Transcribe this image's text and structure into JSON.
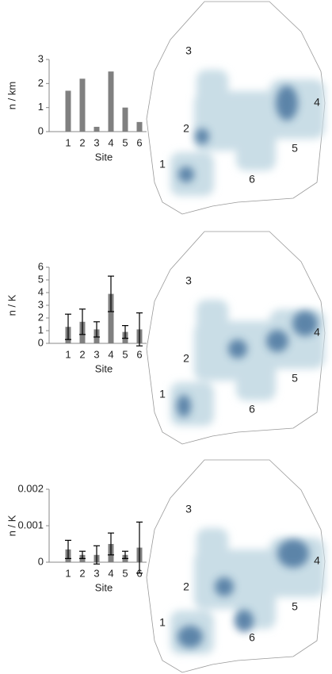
{
  "chart_data": [
    {
      "type": "bar",
      "xlabel": "Site",
      "ylabel": "n / km",
      "categories": [
        "1",
        "2",
        "3",
        "4",
        "5",
        "6"
      ],
      "values": [
        1.7,
        2.2,
        0.2,
        2.5,
        1.0,
        0.4
      ],
      "color": "#808080",
      "ylim": [
        0,
        3
      ],
      "yticks": [
        0,
        1,
        2,
        3
      ]
    },
    {
      "type": "bar",
      "xlabel": "Site",
      "ylabel": "n / K",
      "categories": [
        "1",
        "2",
        "3",
        "4",
        "5",
        "6"
      ],
      "values": [
        1.3,
        1.7,
        1.1,
        3.9,
        0.9,
        1.1
      ],
      "errors": [
        1.0,
        1.0,
        0.6,
        1.4,
        0.5,
        1.3
      ],
      "color": "#808080",
      "ylim": [
        0,
        6
      ],
      "yticks": [
        0,
        1,
        2,
        3,
        4,
        5,
        6
      ]
    },
    {
      "type": "bar",
      "xlabel": "Site",
      "ylabel": "n / K",
      "categories": [
        "1",
        "2",
        "3",
        "4",
        "5",
        "6"
      ],
      "values": [
        0.00035,
        0.0002,
        0.0002,
        0.0005,
        0.0002,
        0.0004
      ],
      "errors": [
        0.00025,
        0.0001,
        0.00025,
        0.0003,
        0.0001,
        0.0007
      ],
      "color": "#808080",
      "ylim": [
        0,
        0.002
      ],
      "yticks": [
        0,
        0.001,
        0.002
      ]
    }
  ],
  "maps": [
    {
      "site_labels": [
        "1",
        "2",
        "3",
        "4",
        "5",
        "6"
      ]
    },
    {
      "site_labels": [
        "1",
        "2",
        "3",
        "4",
        "5",
        "6"
      ]
    },
    {
      "site_labels": [
        "1",
        "2",
        "3",
        "4",
        "5",
        "6"
      ]
    }
  ]
}
